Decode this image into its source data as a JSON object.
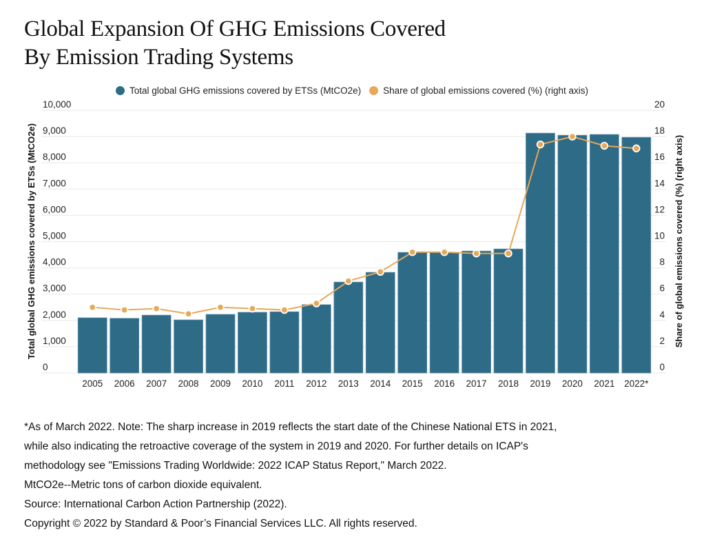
{
  "title_lines": [
    "Global Expansion Of GHG Emissions Covered",
    "By Emission Trading Systems"
  ],
  "colors": {
    "bar": "#2e6b87",
    "line": "#e8a85a",
    "grid": "#ececec"
  },
  "chart_data": {
    "type": "bar",
    "title": "Global Expansion Of GHG Emissions Covered By Emission Trading Systems",
    "categories": [
      "2005",
      "2006",
      "2007",
      "2008",
      "2009",
      "2010",
      "2011",
      "2012",
      "2013",
      "2014",
      "2015",
      "2016",
      "2017",
      "2018",
      "2019",
      "2020",
      "2021",
      "2022*"
    ],
    "series": [
      {
        "name": "Total global GHG emissions covered by ETSs (MtCO2e)",
        "type": "bar",
        "axis": "left",
        "values": [
          2100,
          2080,
          2200,
          2020,
          2230,
          2310,
          2330,
          2600,
          3460,
          3830,
          4590,
          4590,
          4640,
          4720,
          9130,
          9050,
          9080,
          8970
        ]
      },
      {
        "name": "Share of global emissions covered (%) (right axis)",
        "type": "line",
        "axis": "right",
        "values": [
          5.0,
          4.8,
          4.9,
          4.5,
          5.0,
          4.9,
          4.8,
          5.3,
          7.0,
          7.7,
          9.2,
          9.2,
          9.1,
          9.1,
          17.4,
          18.0,
          17.3,
          17.1
        ]
      }
    ],
    "ylabel": "Total global GHG emissions covered by ETSs (MtCO2e)",
    "y2label": "Share of global emissions covered (%) (right axis)",
    "xlabel": "",
    "ylim": [
      0,
      10000
    ],
    "y2lim": [
      0,
      20
    ],
    "yticks": [
      0,
      1000,
      2000,
      3000,
      4000,
      5000,
      6000,
      7000,
      8000,
      9000,
      10000
    ],
    "ytick_labels": [
      "0",
      "1,000",
      "2,000",
      "3,000",
      "4,000",
      "5,000",
      "6,000",
      "7,000",
      "8,000",
      "9,000",
      "10,000"
    ],
    "y2ticks": [
      0,
      2,
      4,
      6,
      8,
      10,
      12,
      14,
      16,
      18,
      20
    ],
    "y2tick_labels": [
      "0",
      "2",
      "4",
      "6",
      "8",
      "10",
      "12",
      "14",
      "16",
      "18",
      "20"
    ],
    "grid": true,
    "legend_position": "top-center"
  },
  "legend": [
    {
      "label": "Total global GHG emissions covered by ETSs (MtCO2e)"
    },
    {
      "label": "Share of global emissions covered (%) (right axis)"
    }
  ],
  "footnotes": [
    "*As of March 2022. Note: The sharp increase in 2019 reflects the start date of the Chinese National ETS in 2021,",
    "while also indicating the retroactive coverage of the system in 2019 and 2020. For further details on ICAP's",
    "methodology see \"Emissions Trading Worldwide: 2022 ICAP Status Report,\" March 2022.",
    "MtCO2e--Metric tons of carbon dioxide equivalent.",
    "Source: International Carbon Action Partnership (2022).",
    "Copyright © 2022 by Standard & Poor’s Financial Services LLC. All rights reserved."
  ]
}
